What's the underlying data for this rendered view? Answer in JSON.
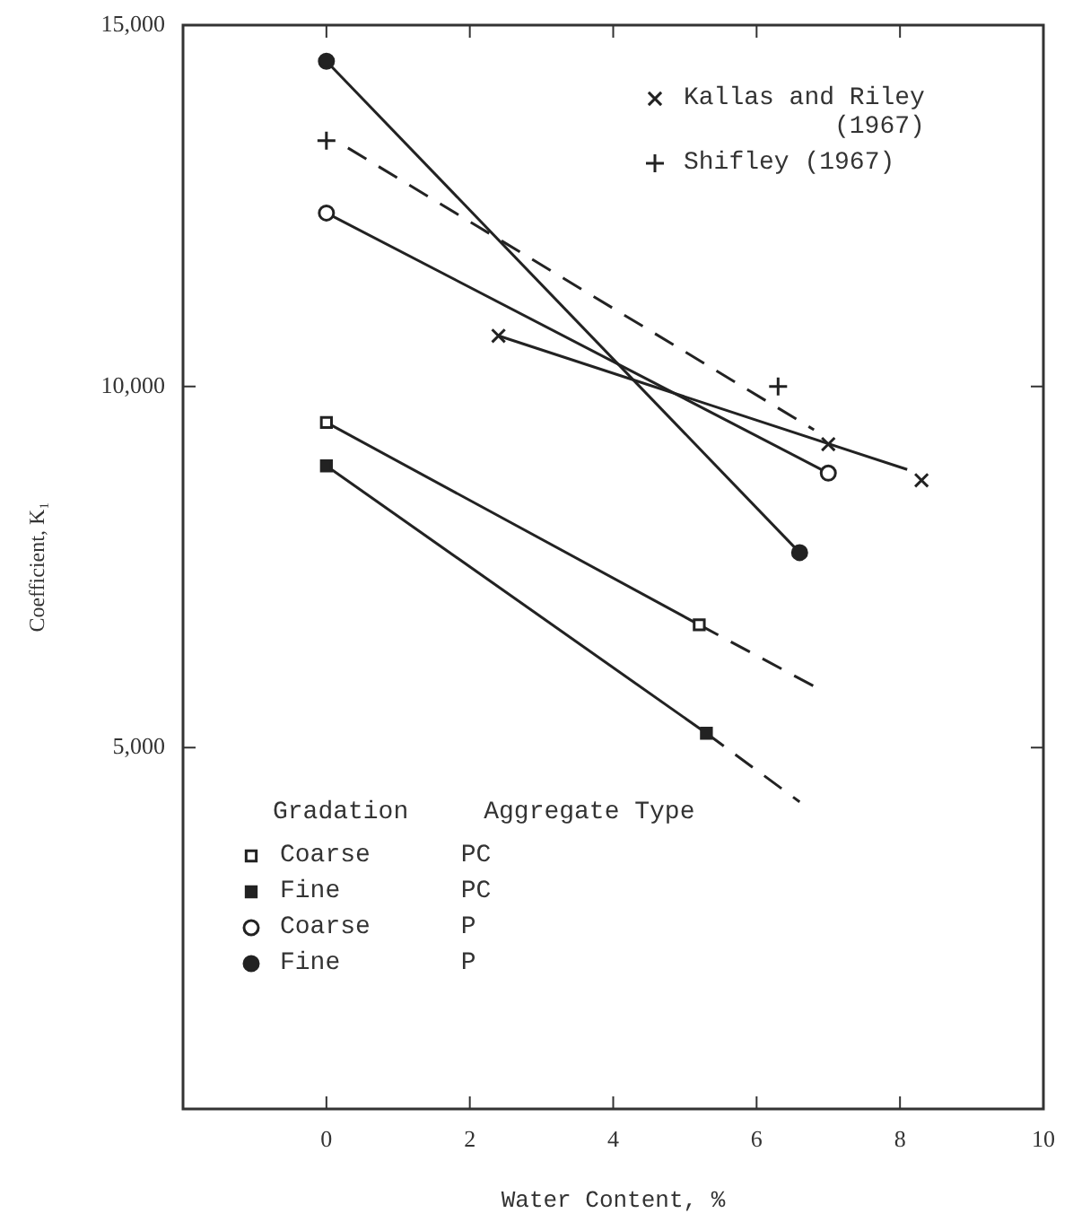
{
  "chart_data": {
    "type": "line",
    "xlabel": "Water Content, %",
    "ylabel": "Coefficient, K₁",
    "legend": "top right",
    "legend_title": "Gradation     Aggregate Type",
    "grid": false,
    "xlim": [
      -2,
      10
    ],
    "xticks": [
      {
        "value": -2,
        "label": null
      },
      0,
      2,
      4,
      6,
      8,
      10
    ],
    "ylim": [
      0,
      15000
    ],
    "yticks": [
      {
        "value": 0,
        "label": null
      },
      {
        "value": 5000,
        "label": "5,000"
      },
      {
        "value": 10000,
        "label": "10,000"
      },
      {
        "value": 15000,
        "label": "15,000"
      }
    ],
    "series": [
      {
        "name": "Kallas and Riley\n(1967)",
        "type": "scatter",
        "marker": "cross",
        "color": "#222222",
        "x": [
          2.4,
          7.0,
          8.3
        ],
        "values": [
          10700,
          9200,
          8700
        ]
      },
      {
        "name": "Shifley (1967)",
        "type": "scatter",
        "marker": "plus",
        "color": "#222222",
        "x": [
          0,
          6.3
        ],
        "values": [
          13400,
          10000
        ]
      },
      {
        "type": "line",
        "marker": "none",
        "color": "#222222",
        "x": [
          2.4,
          8.1
        ],
        "values": [
          10700,
          8850
        ]
      },
      {
        "type": "line",
        "marker": "none",
        "line_style": "dashed",
        "color": "#222222",
        "x": [
          0.3,
          6.8
        ],
        "values": [
          13300,
          9400
        ]
      },
      {
        "name": "Coarse      PC",
        "type": "line",
        "marker": "square-open",
        "color": "#222222",
        "x": [
          0,
          5.2
        ],
        "values": [
          9500,
          6700
        ]
      },
      {
        "type": "line",
        "marker": "none",
        "line_style": "dashed",
        "color": "#222222",
        "x": [
          5.2,
          6.8
        ],
        "values": [
          6700,
          5850
        ]
      },
      {
        "name": "Fine        PC",
        "type": "line",
        "marker": "square",
        "color": "#222222",
        "x": [
          0,
          5.3
        ],
        "values": [
          8900,
          5200
        ]
      },
      {
        "type": "line",
        "marker": "none",
        "line_style": "dashed",
        "color": "#222222",
        "x": [
          5.3,
          6.6
        ],
        "values": [
          5200,
          4250
        ]
      },
      {
        "name": "Coarse      P",
        "type": "line",
        "marker": "circle-open",
        "color": "#222222",
        "x": [
          0,
          7.0
        ],
        "values": [
          12400,
          8800
        ]
      },
      {
        "name": "Fine        P",
        "type": "line",
        "marker": "circle",
        "color": "#222222",
        "x": [
          0,
          6.6
        ],
        "values": [
          14500,
          7700
        ]
      }
    ]
  }
}
